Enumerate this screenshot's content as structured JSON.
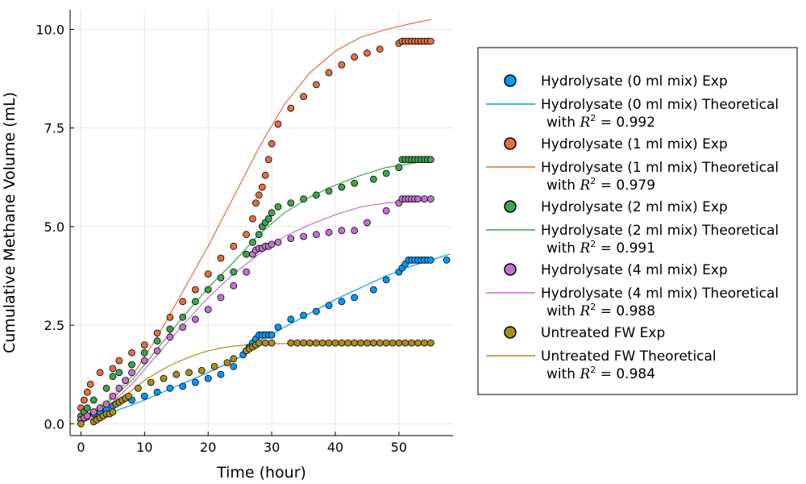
{
  "chart_data": {
    "type": "scatter",
    "xlabel": "Time (hour)",
    "ylabel": "Cumulative Methane Volume (mL)",
    "xlim": [
      -1.7,
      58.5
    ],
    "ylim": [
      -0.3,
      10.5
    ],
    "xticks": [
      0,
      10,
      20,
      30,
      40,
      50
    ],
    "xtick_labels": [
      "0",
      "10",
      "20",
      "30",
      "40",
      "50"
    ],
    "yticks": [
      0,
      2.5,
      5,
      7.5,
      10
    ],
    "ytick_labels": [
      "0.0",
      "2.5",
      "5.0",
      "7.5",
      "10.0"
    ],
    "grid": true,
    "legend_position": "right, outside plot",
    "series": [
      {
        "group": "Hydrolysate (0 ml mix)",
        "exp_label": "Hydrolysate (0 ml mix) Exp",
        "theory_label": "Hydrolysate (0 ml mix) Theoretical",
        "r2_prefix": "with ",
        "r2_value": "0.992",
        "color": "#009af9",
        "exp": {
          "x": [
            0,
            1,
            2,
            3,
            4,
            5,
            6,
            8,
            10,
            12,
            14,
            16,
            18,
            20,
            22,
            24,
            25.5,
            26,
            26.5,
            27,
            27.5,
            28,
            28.5,
            29,
            29.5,
            30,
            31,
            33,
            35,
            37,
            39,
            41,
            43,
            46,
            48,
            50,
            50.5,
            51,
            51.5,
            52,
            52.5,
            53,
            53.5,
            54,
            54.5,
            55,
            57.5
          ],
          "y": [
            0.1,
            0.2,
            0.25,
            0.3,
            0.35,
            0.45,
            0.55,
            0.6,
            0.7,
            0.8,
            0.9,
            0.95,
            1.05,
            1.15,
            1.25,
            1.45,
            1.75,
            1.85,
            1.95,
            2.05,
            2.15,
            2.25,
            2.25,
            2.25,
            2.25,
            2.25,
            2.45,
            2.65,
            2.75,
            2.85,
            3.0,
            3.1,
            3.2,
            3.4,
            3.65,
            3.85,
            3.95,
            4.05,
            4.15,
            4.15,
            4.15,
            4.15,
            4.15,
            4.15,
            4.15,
            4.15,
            4.15
          ]
        },
        "fit": {
          "x": [
            0,
            5,
            10,
            15,
            20,
            24,
            26,
            27,
            28,
            32,
            36,
            40,
            44,
            48,
            52,
            58
          ],
          "y": [
            0.05,
            0.3,
            0.6,
            0.95,
            1.3,
            1.6,
            1.78,
            1.95,
            2.1,
            2.45,
            2.8,
            3.15,
            3.45,
            3.75,
            4.0,
            4.3
          ]
        }
      },
      {
        "group": "Hydrolysate (1 ml mix)",
        "exp_label": "Hydrolysate (1 ml mix) Exp",
        "theory_label": "Hydrolysate (1 ml mix) Theoretical",
        "r2_prefix": "with ",
        "r2_value": "0.979",
        "color": "#e26f46",
        "exp": {
          "x": [
            0,
            0.5,
            1,
            1.5,
            3,
            5,
            6,
            8,
            10,
            12,
            14,
            16,
            18,
            20,
            22,
            24,
            26,
            27,
            27.5,
            28,
            28.5,
            29,
            29.5,
            30,
            31,
            33,
            35,
            37,
            39,
            41,
            43,
            45,
            47,
            50,
            50.5,
            51,
            51.5,
            52,
            52.5,
            53,
            53.5,
            54,
            54.5,
            55
          ],
          "y": [
            0.4,
            0.6,
            0.8,
            1.0,
            1.3,
            1.4,
            1.6,
            1.8,
            2.0,
            2.3,
            2.7,
            3.1,
            3.4,
            3.8,
            4.2,
            4.5,
            4.8,
            5.2,
            5.6,
            5.8,
            6.0,
            6.3,
            6.7,
            7.1,
            7.6,
            8.0,
            8.3,
            8.6,
            8.9,
            9.1,
            9.3,
            9.4,
            9.5,
            9.65,
            9.7,
            9.7,
            9.7,
            9.7,
            9.7,
            9.7,
            9.7,
            9.7,
            9.7,
            9.7
          ]
        },
        "fit": {
          "x": [
            0,
            4,
            8,
            12,
            16,
            20,
            24,
            28,
            32,
            36,
            40,
            44,
            48,
            52,
            55
          ],
          "y": [
            0.15,
            0.55,
            1.2,
            2.2,
            3.35,
            4.5,
            5.75,
            7.0,
            8.1,
            8.9,
            9.45,
            9.8,
            10.0,
            10.15,
            10.25
          ]
        }
      },
      {
        "group": "Hydrolysate (2 ml mix)",
        "exp_label": "Hydrolysate (2 ml mix) Exp",
        "theory_label": "Hydrolysate (2 ml mix) Theoretical",
        "r2_prefix": "with ",
        "r2_value": "0.991",
        "color": "#3ea44e",
        "exp": {
          "x": [
            0,
            0.5,
            1,
            2,
            4,
            5,
            6,
            8,
            10,
            12,
            14,
            16,
            18,
            20,
            22,
            24,
            26,
            27,
            28,
            28.5,
            29,
            29.5,
            30,
            31,
            33,
            35,
            37,
            39,
            41,
            43,
            46,
            48,
            50,
            50.5,
            51,
            51.5,
            52,
            52.5,
            53,
            53.5,
            54,
            54.5,
            55
          ],
          "y": [
            0.2,
            0.3,
            0.4,
            0.6,
            0.9,
            1.2,
            1.3,
            1.5,
            1.8,
            2.1,
            2.4,
            2.7,
            3.1,
            3.4,
            3.7,
            3.85,
            4.3,
            4.6,
            4.8,
            5.0,
            5.1,
            5.2,
            5.35,
            5.5,
            5.6,
            5.7,
            5.8,
            5.9,
            6.0,
            6.1,
            6.2,
            6.35,
            6.5,
            6.7,
            6.7,
            6.7,
            6.7,
            6.7,
            6.7,
            6.7,
            6.7,
            6.7,
            6.7
          ]
        },
        "fit": {
          "x": [
            0,
            4,
            8,
            12,
            16,
            20,
            24,
            28,
            32,
            36,
            40,
            44,
            48,
            52,
            55
          ],
          "y": [
            0.1,
            0.5,
            1.1,
            1.9,
            2.7,
            3.45,
            4.1,
            4.8,
            5.35,
            5.75,
            6.05,
            6.3,
            6.5,
            6.6,
            6.7
          ]
        }
      },
      {
        "group": "Hydrolysate (4 ml mix)",
        "exp_label": "Hydrolysate (4 ml mix) Exp",
        "theory_label": "Hydrolysate (4 ml mix) Theoretical",
        "r2_prefix": "with ",
        "r2_value": "0.988",
        "color": "#c271d2",
        "exp": {
          "x": [
            0,
            0.5,
            1,
            2,
            3,
            4,
            5,
            6,
            7,
            8,
            10,
            12,
            14,
            16,
            18,
            20,
            22,
            24,
            26,
            27,
            27.5,
            28,
            28.5,
            29,
            29.5,
            30,
            31,
            33,
            35,
            37,
            39,
            41,
            43,
            45,
            48,
            50,
            50.5,
            51,
            51.5,
            52,
            52.5,
            53,
            54,
            55
          ],
          "y": [
            0.1,
            0.15,
            0.2,
            0.3,
            0.4,
            0.5,
            0.7,
            0.9,
            1.1,
            1.3,
            1.6,
            1.85,
            2.2,
            2.45,
            2.65,
            2.9,
            3.2,
            3.5,
            3.85,
            4.3,
            4.4,
            4.45,
            4.45,
            4.5,
            4.5,
            4.55,
            4.6,
            4.7,
            4.75,
            4.8,
            4.85,
            4.9,
            4.9,
            5.1,
            5.4,
            5.6,
            5.7,
            5.7,
            5.7,
            5.7,
            5.7,
            5.7,
            5.7,
            5.7
          ]
        },
        "fit": {
          "x": [
            0,
            4,
            8,
            12,
            16,
            20,
            24,
            28,
            32,
            36,
            40,
            44,
            48,
            52,
            55
          ],
          "y": [
            0.1,
            0.4,
            1.0,
            1.75,
            2.5,
            3.2,
            3.8,
            4.3,
            4.75,
            5.05,
            5.3,
            5.5,
            5.6,
            5.65,
            5.7
          ]
        }
      },
      {
        "group": "Untreated FW",
        "exp_label": "Untreated FW Exp",
        "theory_label": "Untreated FW Theoretical",
        "r2_prefix": "with ",
        "r2_value": "0.984",
        "color": "#ac8d18",
        "exp": {
          "x": [
            0,
            2,
            2.5,
            3,
            3.5,
            4,
            4.5,
            5,
            5.5,
            6,
            6.5,
            7,
            7.5,
            9,
            11,
            13,
            15,
            17,
            19,
            21,
            23,
            24,
            26,
            26.5,
            27,
            27.5,
            28,
            29,
            30,
            33,
            34,
            35,
            36,
            37,
            38,
            39,
            40,
            41,
            42,
            43,
            44,
            45,
            46,
            47,
            48,
            49,
            50,
            51,
            52,
            53,
            54,
            55
          ],
          "y": [
            0.0,
            0.05,
            0.1,
            0.15,
            0.2,
            0.25,
            0.25,
            0.3,
            0.5,
            0.55,
            0.6,
            0.65,
            0.7,
            0.9,
            1.05,
            1.15,
            1.25,
            1.3,
            1.35,
            1.45,
            1.55,
            1.65,
            1.85,
            1.9,
            1.95,
            2.0,
            2.05,
            2.05,
            2.05,
            2.05,
            2.05,
            2.05,
            2.05,
            2.05,
            2.05,
            2.05,
            2.05,
            2.05,
            2.05,
            2.05,
            2.05,
            2.05,
            2.05,
            2.05,
            2.05,
            2.05,
            2.05,
            2.05,
            2.05,
            2.05,
            2.05,
            2.05
          ]
        },
        "fit": {
          "x": [
            0,
            2,
            4,
            6,
            8,
            10,
            12,
            14,
            16,
            18,
            20,
            22,
            24,
            26,
            28,
            30,
            35,
            40,
            55
          ],
          "y": [
            0.02,
            0.15,
            0.35,
            0.6,
            0.85,
            1.1,
            1.3,
            1.48,
            1.62,
            1.75,
            1.85,
            1.92,
            1.97,
            2.0,
            2.02,
            2.03,
            2.04,
            2.05,
            2.05
          ]
        }
      }
    ]
  }
}
